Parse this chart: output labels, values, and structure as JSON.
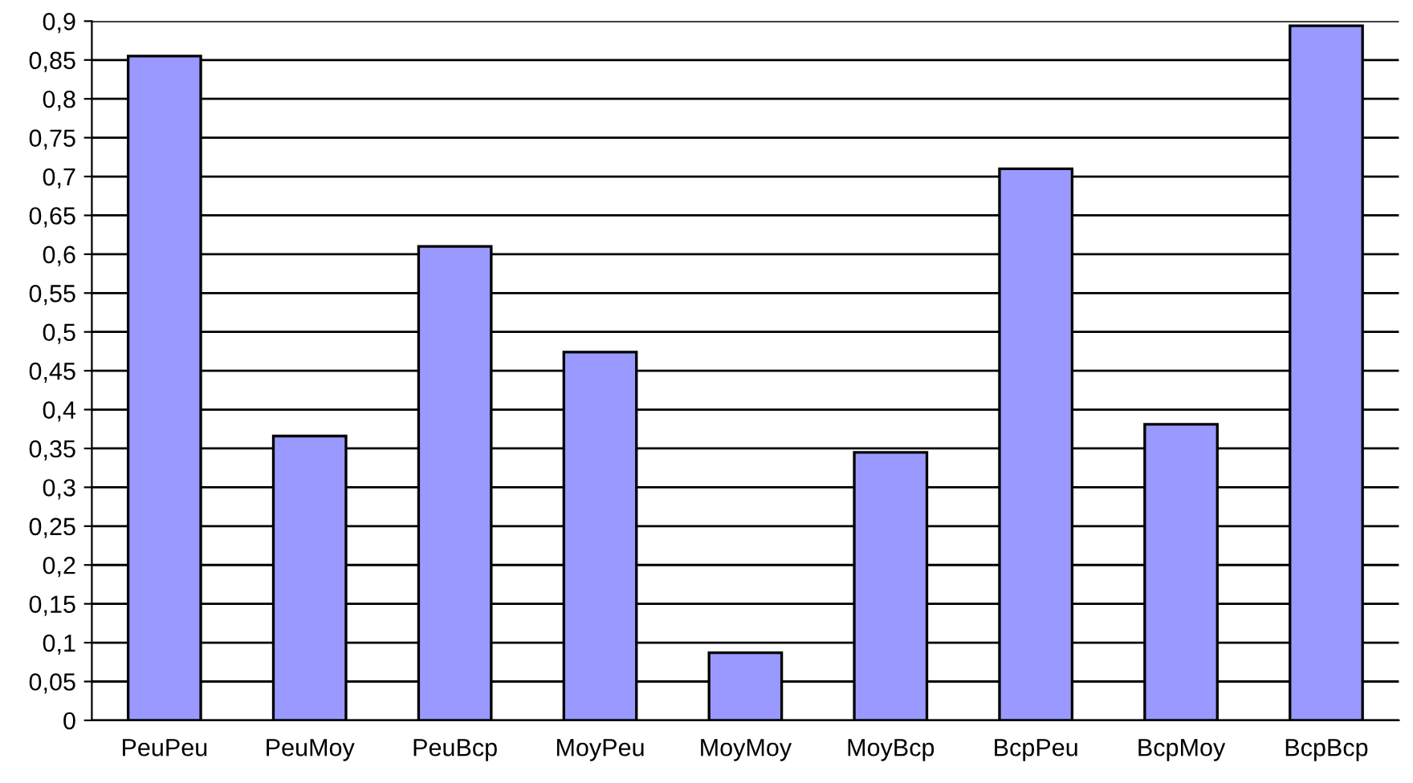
{
  "chart_data": {
    "type": "bar",
    "categories": [
      "PeuPeu",
      "PeuMoy",
      "PeuBcp",
      "MoyPeu",
      "MoyMoy",
      "MoyBcp",
      "BcpPeu",
      "BcpMoy",
      "BcpBcp"
    ],
    "values": [
      0.855,
      0.366,
      0.61,
      0.474,
      0.087,
      0.345,
      0.71,
      0.381,
      0.894
    ],
    "color": "#9999ff",
    "ylim": [
      0,
      0.9
    ],
    "yticks": [
      0,
      {
        "value": 0.05,
        "label": "0,05"
      },
      {
        "value": 0.1,
        "label": "0,1"
      },
      {
        "value": 0.15,
        "label": "0,15"
      },
      {
        "value": 0.2,
        "label": "0,2"
      },
      {
        "value": 0.25,
        "label": "0,25"
      },
      {
        "value": 0.3,
        "label": "0,3"
      },
      {
        "value": 0.35,
        "label": "0,35"
      },
      {
        "value": 0.4,
        "label": "0,4"
      },
      {
        "value": 0.45,
        "label": "0,45"
      },
      {
        "value": 0.5,
        "label": "0,5"
      },
      {
        "value": 0.55,
        "label": "0,55"
      },
      {
        "value": 0.6,
        "label": "0,6"
      },
      {
        "value": 0.65,
        "label": "0,65"
      },
      {
        "value": 0.7,
        "label": "0,7"
      },
      {
        "value": 0.75,
        "label": "0,75"
      },
      {
        "value": 0.8,
        "label": "0,8"
      },
      {
        "value": 0.85,
        "label": "0,85"
      },
      {
        "value": 0.9,
        "label": "0,9"
      }
    ],
    "grid": "y"
  }
}
